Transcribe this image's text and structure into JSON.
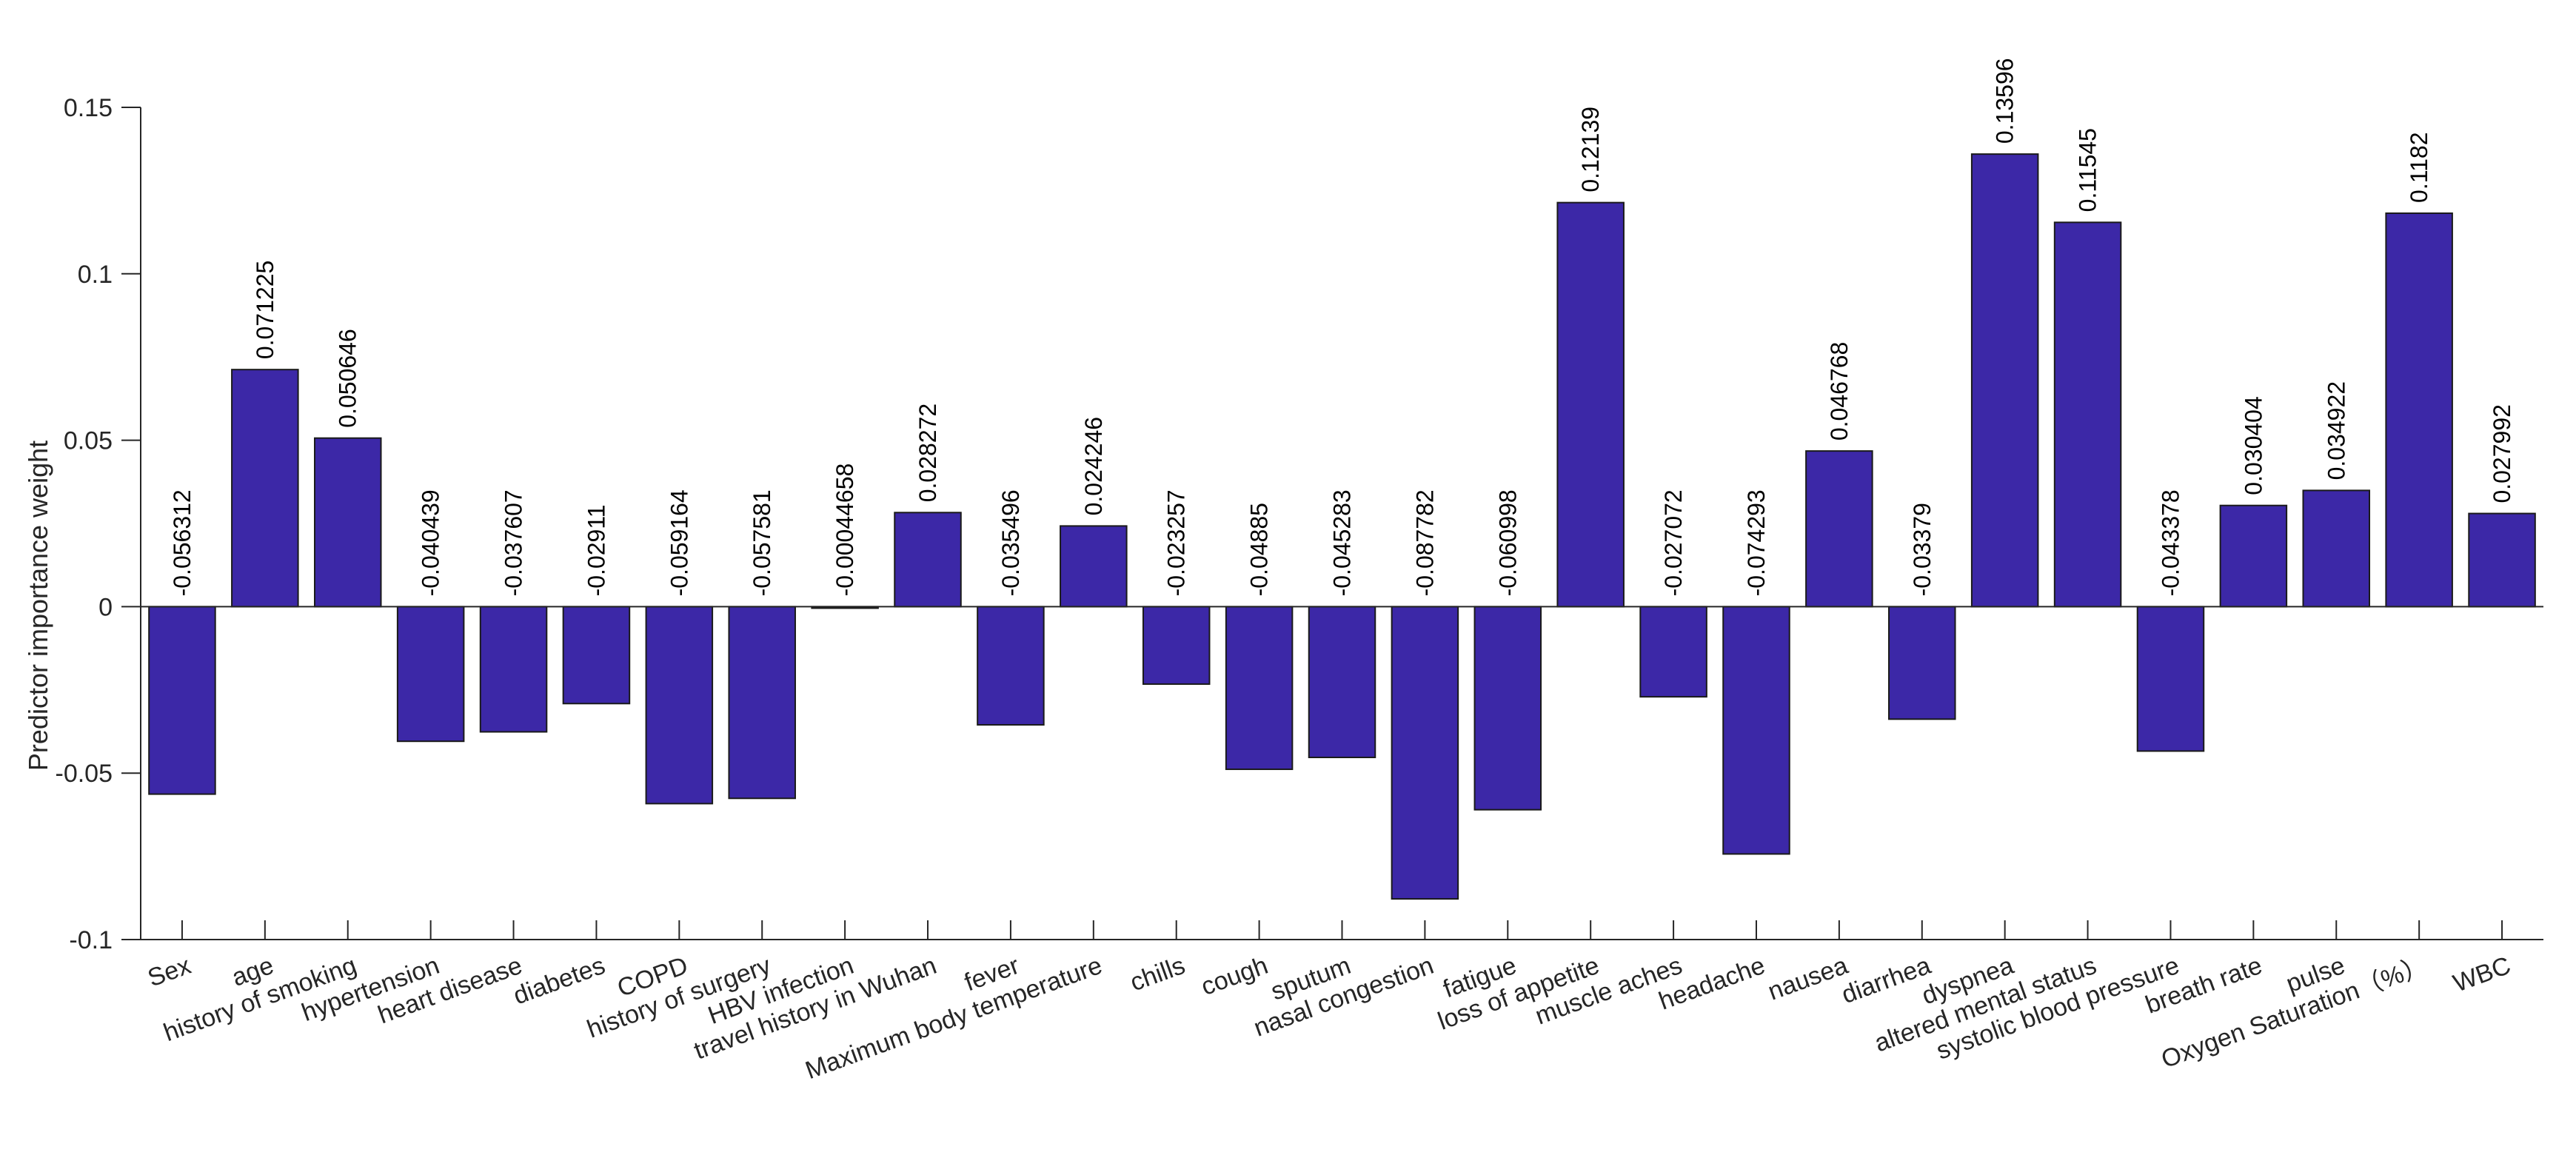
{
  "chart_data": {
    "type": "bar",
    "title": "",
    "xlabel": "",
    "ylabel": "Predictor importance weight",
    "ylim": [
      -0.1,
      0.15
    ],
    "yticks": [
      0.15,
      0.1,
      0.05,
      0,
      -0.05,
      -0.1
    ],
    "ytick_labels": [
      "0.15",
      "0.1",
      "0.05",
      "0",
      "-0.05",
      "-0.1"
    ],
    "bar_color": "#3c28a7",
    "categories": [
      "Sex",
      "age",
      "history of smoking",
      "hypertension",
      "heart disease",
      "diabetes",
      "COPD",
      "history of surgery",
      "HBV infection",
      "travel history in Wuhan",
      "fever",
      "Maximum body temperature",
      "chills",
      "cough",
      "sputum",
      "nasal congestion",
      "fatigue",
      "loss of appetite",
      "muscle aches",
      "headache",
      "nausea",
      "diarrhea",
      "dyspnea",
      "altered mental status",
      "systolic blood pressure",
      "breath rate",
      "pulse",
      "Oxygen Saturation（%）",
      "WBC"
    ],
    "values": [
      -0.056312,
      0.071225,
      0.050646,
      -0.040439,
      -0.037607,
      -0.02911,
      -0.059164,
      -0.057581,
      -0.00044658,
      0.028272,
      -0.035496,
      0.024246,
      -0.023257,
      -0.04885,
      -0.045283,
      -0.087782,
      -0.060998,
      0.12139,
      -0.027072,
      -0.074293,
      0.046768,
      -0.03379,
      0.13596,
      0.11545,
      -0.043378,
      0.030404,
      0.034922,
      0.1182,
      0.027992
    ],
    "value_labels": [
      "-0.056312",
      "0.071225",
      "0.050646",
      "-0.040439",
      "-0.037607",
      "-0.02911",
      "-0.059164",
      "-0.057581",
      "-0.00044658",
      "0.028272",
      "-0.035496",
      "0.024246",
      "-0.023257",
      "-0.04885",
      "-0.045283",
      "-0.087782",
      "-0.060998",
      "0.12139",
      "-0.027072",
      "-0.074293",
      "0.046768",
      "-0.03379",
      "0.13596",
      "0.11545",
      "-0.043378",
      "0.030404",
      "0.034922",
      "0.1182",
      "0.027992"
    ]
  }
}
